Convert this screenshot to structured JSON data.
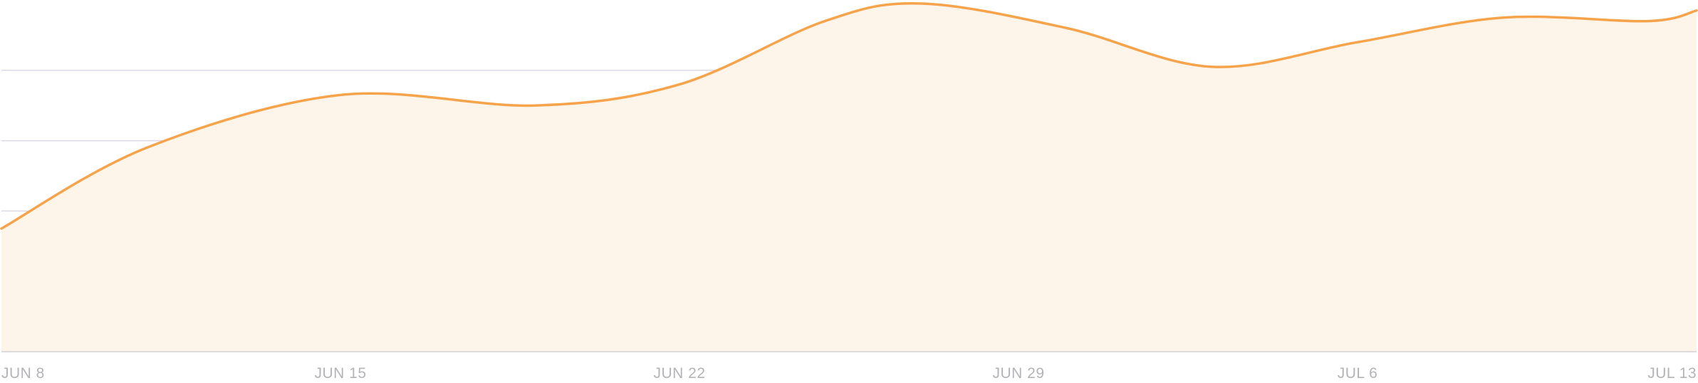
{
  "chart_data": {
    "type": "area",
    "title": "",
    "xlabel": "",
    "ylabel": "",
    "x_tick_labels": [
      "JUN 8",
      "JUN 15",
      "JUN 22",
      "JUN 29",
      "JUL 6",
      "JUL 13"
    ],
    "x": [
      "Jun 8",
      "Jun 11",
      "Jun 15",
      "Jun 19",
      "Jun 22",
      "Jun 25",
      "Jun 27",
      "Jun 30",
      "Jul 3",
      "Jul 6",
      "Jul 9",
      "Jul 12",
      "Jul 13"
    ],
    "series": [
      {
        "values": [
          1.75,
          2.9,
          3.65,
          3.5,
          3.8,
          4.7,
          4.95,
          4.6,
          4.05,
          4.4,
          4.75,
          4.7,
          4.85
        ]
      }
    ],
    "ylim": [
      0,
      5
    ],
    "y_gridlines": [
      1,
      2,
      3,
      4
    ],
    "y_tick_labels_shown": false,
    "grid": true,
    "legend": "none",
    "colors": {
      "line": "#f6a44c",
      "fill": "#fdf4ea",
      "grid": "#dcd9e4",
      "axis": "#d4d2d8",
      "tick_text": "#b4b4b8"
    }
  }
}
